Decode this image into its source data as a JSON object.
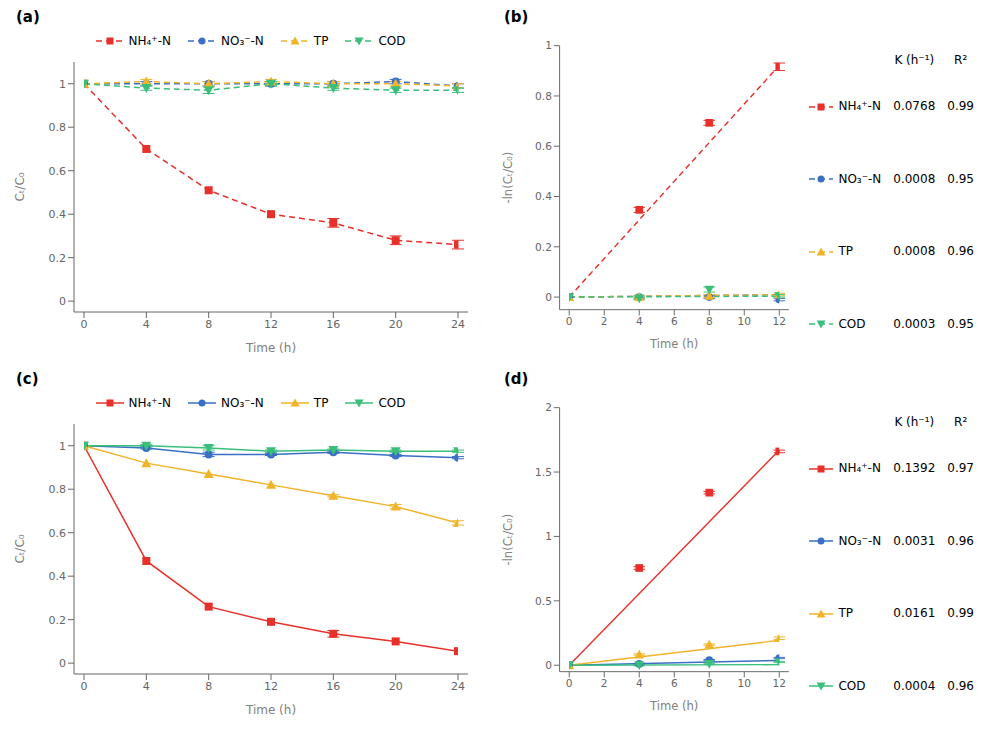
{
  "chart_data": [
    {
      "type": "line",
      "title": "(a)",
      "x_label": "Time (h)",
      "y_label": "Cₜ/C₀",
      "x": [
        0,
        4,
        8,
        12,
        16,
        20,
        24
      ],
      "xlim": [
        0,
        24
      ],
      "xticks": [
        0,
        4,
        8,
        12,
        16,
        20,
        24
      ],
      "ylim": [
        -0.05,
        1.1
      ],
      "yticks": [
        0,
        0.2,
        0.4,
        0.6,
        0.8,
        1
      ],
      "legend": "top",
      "series": [
        {
          "name": "NH₄⁺-N",
          "color": "#e8302a",
          "marker": "square",
          "line_style": "dashed",
          "values": [
            1.0,
            0.7,
            0.51,
            0.4,
            0.36,
            0.28,
            0.26
          ],
          "errors": [
            0.0,
            0.0,
            0.0,
            0.0,
            0.02,
            0.02,
            0.02
          ]
        },
        {
          "name": "NO₃⁻-N",
          "color": "#3a6fc4",
          "marker": "circle",
          "line_style": "dashed",
          "values": [
            1.0,
            1.0,
            1.0,
            1.0,
            1.0,
            1.01,
            0.99
          ],
          "errors": [
            0.0,
            0.01,
            0.01,
            0.01,
            0.01,
            0.01,
            0.01
          ]
        },
        {
          "name": "TP",
          "color": "#f0b429",
          "marker": "triangle_up",
          "line_style": "dashed",
          "values": [
            1.0,
            1.01,
            1.0,
            1.01,
            1.0,
            1.0,
            0.99
          ],
          "errors": [
            0.0,
            0.01,
            0.01,
            0.01,
            0.01,
            0.01,
            0.01
          ]
        },
        {
          "name": "COD",
          "color": "#3abf7a",
          "marker": "triangle_down",
          "line_style": "dashed",
          "values": [
            1.0,
            0.98,
            0.97,
            1.0,
            0.98,
            0.97,
            0.97
          ],
          "errors": [
            0.0,
            0.01,
            0.015,
            0.01,
            0.01,
            0.01,
            0.01
          ]
        }
      ]
    },
    {
      "type": "scatter",
      "title": "(b)",
      "x_label": "Time (h)",
      "y_label": "-ln(Cₜ/C₀)",
      "x": [
        0,
        4,
        8,
        12
      ],
      "xlim": [
        0,
        12
      ],
      "xticks": [
        0,
        2,
        4,
        6,
        8,
        10,
        12
      ],
      "ylim": [
        -0.05,
        1.0
      ],
      "yticks": [
        0,
        0.2,
        0.4,
        0.6,
        0.8,
        1
      ],
      "legend": "right",
      "table_header": [
        "K (h⁻¹)",
        "R²"
      ],
      "series": [
        {
          "name": "NH₄⁺-N",
          "color": "#e8302a",
          "marker": "square",
          "line_style": "dashed",
          "values": [
            0.0,
            0.347,
            0.693,
            0.916
          ],
          "errors": [
            0.0,
            0.01,
            0.01,
            0.015
          ],
          "k": 0.0768,
          "r2": 0.99,
          "fit": {
            "x": [
              0,
              12
            ],
            "values": [
              0,
              0.9216
            ]
          }
        },
        {
          "name": "NO₃⁻-N",
          "color": "#3a6fc4",
          "marker": "circle",
          "line_style": "dashed",
          "values": [
            0.0,
            0.0,
            0.0,
            -0.01
          ],
          "errors": [
            0.0,
            0.005,
            0.005,
            0.005
          ],
          "k": 0.0008,
          "r2": 0.95,
          "fit": {
            "x": [
              0,
              12
            ],
            "values": [
              0,
              0.0096
            ]
          }
        },
        {
          "name": "TP",
          "color": "#f0b429",
          "marker": "triangle_up",
          "line_style": "dashed",
          "values": [
            0.0,
            0.0,
            0.005,
            0.01
          ],
          "errors": [
            0.0,
            0.005,
            0.005,
            0.005
          ],
          "k": 0.0008,
          "r2": 0.96,
          "fit": {
            "x": [
              0,
              12
            ],
            "values": [
              0,
              0.0096
            ]
          }
        },
        {
          "name": "COD",
          "color": "#3abf7a",
          "marker": "triangle_down",
          "line_style": "dashed",
          "values": [
            0.0,
            -0.005,
            0.03,
            0.005
          ],
          "errors": [
            0.0,
            0.005,
            0.01,
            0.005
          ],
          "k": 0.0003,
          "r2": 0.95,
          "fit": {
            "x": [
              0,
              12
            ],
            "values": [
              0,
              0.0036
            ]
          }
        }
      ]
    },
    {
      "type": "line",
      "title": "(c)",
      "x_label": "Time (h)",
      "y_label": "Cₜ/C₀",
      "x": [
        0,
        4,
        8,
        12,
        16,
        20,
        24
      ],
      "xlim": [
        0,
        24
      ],
      "xticks": [
        0,
        4,
        8,
        12,
        16,
        20,
        24
      ],
      "ylim": [
        -0.05,
        1.1
      ],
      "yticks": [
        0,
        0.2,
        0.4,
        0.6,
        0.8,
        1
      ],
      "legend": "top",
      "series": [
        {
          "name": "NH₄⁺-N",
          "color": "#e8302a",
          "marker": "square",
          "line_style": "solid",
          "values": [
            1.0,
            0.47,
            0.26,
            0.19,
            0.135,
            0.1,
            0.055
          ],
          "errors": [
            0.0,
            0.0,
            0.0,
            0.0,
            0.015,
            0.0,
            0.0
          ]
        },
        {
          "name": "NO₃⁻-N",
          "color": "#3a6fc4",
          "marker": "circle",
          "line_style": "solid",
          "values": [
            1.0,
            0.99,
            0.96,
            0.96,
            0.97,
            0.955,
            0.945
          ],
          "errors": [
            0.0,
            0.005,
            0.01,
            0.005,
            0.005,
            0.005,
            0.005
          ]
        },
        {
          "name": "TP",
          "color": "#f0b429",
          "marker": "triangle_up",
          "line_style": "solid",
          "values": [
            1.0,
            0.92,
            0.87,
            0.82,
            0.77,
            0.72,
            0.645
          ],
          "errors": [
            0.0,
            0.0,
            0.0,
            0.0,
            0.005,
            0.01,
            0.01
          ]
        },
        {
          "name": "COD",
          "color": "#3abf7a",
          "marker": "triangle_down",
          "line_style": "solid",
          "values": [
            1.0,
            1.0,
            0.99,
            0.975,
            0.98,
            0.975,
            0.975
          ],
          "errors": [
            0.0,
            0.005,
            0.01,
            0.005,
            0.005,
            0.005,
            0.005
          ]
        }
      ]
    },
    {
      "type": "scatter",
      "title": "(d)",
      "x_label": "Time (h)",
      "y_label": "-ln(Cₜ/C₀)",
      "x": [
        0,
        4,
        8,
        12
      ],
      "xlim": [
        0,
        12
      ],
      "xticks": [
        0,
        2,
        4,
        6,
        8,
        10,
        12
      ],
      "ylim": [
        -0.05,
        2.0
      ],
      "yticks": [
        0,
        0.5,
        1,
        1.5,
        2
      ],
      "legend": "right",
      "table_header": [
        "K (h⁻¹)",
        "R²"
      ],
      "series": [
        {
          "name": "NH₄⁺-N",
          "color": "#e8302a",
          "marker": "square",
          "line_style": "solid",
          "values": [
            0.0,
            0.755,
            1.34,
            1.66
          ],
          "errors": [
            0.0,
            0.01,
            0.01,
            0.01
          ],
          "k": 0.1392,
          "r2": 0.97,
          "fit": {
            "x": [
              0,
              12
            ],
            "values": [
              0,
              1.6704
            ]
          }
        },
        {
          "name": "NO₃⁻-N",
          "color": "#3a6fc4",
          "marker": "circle",
          "line_style": "solid",
          "values": [
            0.0,
            0.01,
            0.04,
            0.056
          ],
          "errors": [
            0.0,
            0.005,
            0.005,
            0.005
          ],
          "k": 0.0031,
          "r2": 0.96,
          "fit": {
            "x": [
              0,
              12
            ],
            "values": [
              0,
              0.0372
            ]
          }
        },
        {
          "name": "TP",
          "color": "#f0b429",
          "marker": "triangle_up",
          "line_style": "solid",
          "values": [
            0.0,
            0.083,
            0.16,
            0.21
          ],
          "errors": [
            0.0,
            0.005,
            0.005,
            0.01
          ],
          "k": 0.0161,
          "r2": 0.99,
          "fit": {
            "x": [
              0,
              12
            ],
            "values": [
              0,
              0.1932
            ]
          }
        },
        {
          "name": "COD",
          "color": "#3abf7a",
          "marker": "triangle_down",
          "line_style": "solid",
          "values": [
            0.0,
            0.0,
            0.01,
            0.025
          ],
          "errors": [
            0.0,
            0.005,
            0.005,
            0.005
          ],
          "k": 0.0004,
          "r2": 0.96,
          "fit": {
            "x": [
              0,
              12
            ],
            "values": [
              0,
              0.0048
            ]
          }
        }
      ]
    }
  ]
}
